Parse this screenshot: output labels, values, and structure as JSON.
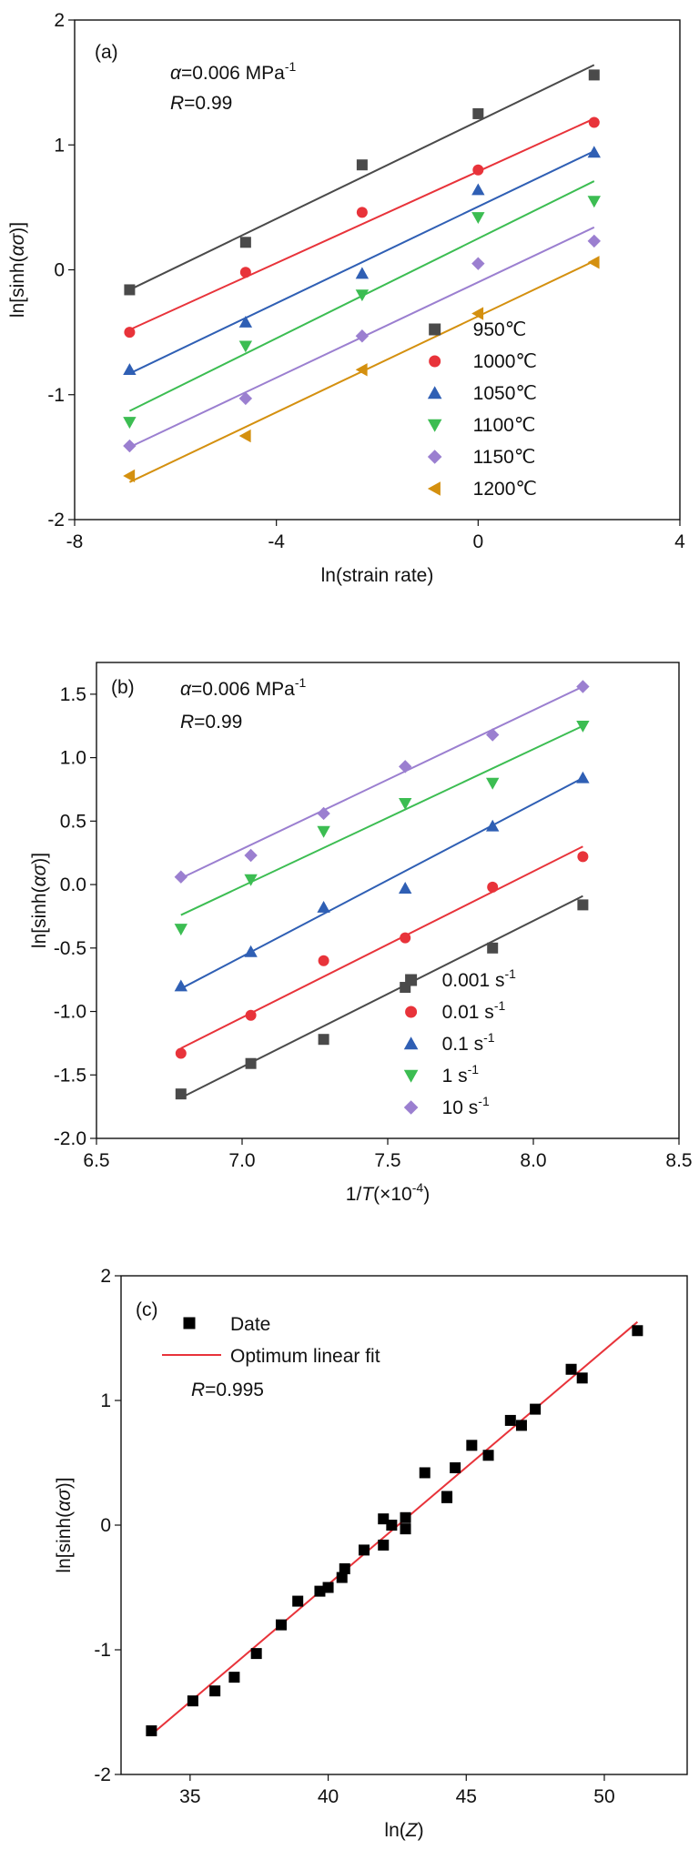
{
  "panels": [
    {
      "id": "a",
      "panel_label": "(a)",
      "annotations": {
        "alpha_sym": "α",
        "alpha_val": "=0.006 MPa",
        "alpha_sup": "-1",
        "r_sym": "R",
        "r_val": "=0.99"
      },
      "ylabel": {
        "prefix": "ln[sinh(",
        "alpha": "α",
        "sigma": "σ",
        "suffix": ")]"
      },
      "xlabel": {
        "parts": [
          {
            "t": "ln(strain rate)",
            "i": false
          }
        ]
      }
    },
    {
      "id": "b",
      "panel_label": "(b)",
      "annotations": {
        "alpha_sym": "α",
        "alpha_val": "=0.006 MPa",
        "alpha_sup": "-1",
        "r_sym": "R",
        "r_val": "=0.99"
      },
      "ylabel": {
        "prefix": "ln[sinh(",
        "alpha": "α",
        "sigma": "σ",
        "suffix": ")]"
      },
      "xlabel": {
        "parts": [
          {
            "t": "1/",
            "i": false
          },
          {
            "t": "T",
            "i": true
          },
          {
            "t": "(×10",
            "i": false
          }
        ],
        "sup": "-4",
        "tail": ")"
      }
    },
    {
      "id": "c",
      "panel_label": "(c)",
      "annotations": {
        "r_sym": "R",
        "r_val": "=0.995"
      },
      "ylabel": {
        "prefix": "ln[sinh(",
        "alpha": "α",
        "sigma": "σ",
        "suffix": ")]"
      },
      "xlabel": {
        "parts": [
          {
            "t": "ln(",
            "i": false
          },
          {
            "t": "Z",
            "i": true
          },
          {
            "t": ")",
            "i": false
          }
        ]
      }
    }
  ],
  "chart_data": [
    {
      "type": "scatter",
      "panel": "a",
      "xlabel": "ln(strain rate)",
      "ylabel": "ln[sinh(ασ)]",
      "xlim": [
        -8,
        4
      ],
      "ylim": [
        -2,
        2
      ],
      "xticks": [
        -8,
        -4,
        0,
        4
      ],
      "xtick_labels": [
        "-8",
        "-4",
        "0",
        "4"
      ],
      "yticks": [
        -2,
        -1,
        0,
        1,
        2
      ],
      "ytick_labels": [
        "-2",
        "-1",
        "0",
        "1",
        "2"
      ],
      "legend_position": "lower-right",
      "x": [
        -6.91,
        -4.61,
        -2.3,
        0,
        2.3
      ],
      "series": [
        {
          "name": "950",
          "unit": "℃",
          "color": "#4a4a4a",
          "marker": "square",
          "values": [
            -0.16,
            0.22,
            0.84,
            1.25,
            1.56
          ],
          "fit": [
            [
              -6.91,
              -0.16
            ],
            [
              2.3,
              1.64
            ]
          ]
        },
        {
          "name": "1000",
          "unit": "℃",
          "color": "#e8333a",
          "marker": "circle",
          "values": [
            -0.5,
            -0.02,
            0.46,
            0.8,
            1.18
          ],
          "fit": [
            [
              -6.91,
              -0.48
            ],
            [
              2.3,
              1.21
            ]
          ]
        },
        {
          "name": "1050",
          "unit": "℃",
          "color": "#2f5fb4",
          "marker": "triangle-up",
          "values": [
            -0.8,
            -0.42,
            -0.03,
            0.64,
            0.94
          ],
          "fit": [
            [
              -6.91,
              -0.83
            ],
            [
              2.3,
              0.95
            ]
          ]
        },
        {
          "name": "1100",
          "unit": "℃",
          "color": "#3cbd52",
          "marker": "triangle-down",
          "values": [
            -1.22,
            -0.61,
            -0.2,
            0.42,
            0.55
          ],
          "fit": [
            [
              -6.91,
              -1.13
            ],
            [
              2.3,
              0.71
            ]
          ]
        },
        {
          "name": "1150",
          "unit": "℃",
          "color": "#9b7fd0",
          "marker": "diamond",
          "values": [
            -1.41,
            -1.03,
            -0.53,
            0.05,
            0.23
          ],
          "fit": [
            [
              -6.91,
              -1.42
            ],
            [
              2.3,
              0.34
            ]
          ]
        },
        {
          "name": "1200",
          "unit": "℃",
          "color": "#d4900f",
          "marker": "triangle-left",
          "values": [
            -1.65,
            -1.33,
            -0.8,
            -0.35,
            0.06
          ],
          "fit": [
            [
              -6.91,
              -1.7
            ],
            [
              2.3,
              0.07
            ]
          ]
        }
      ]
    },
    {
      "type": "scatter",
      "panel": "b",
      "xlabel": "1/T(×10⁻⁴)",
      "ylabel": "ln[sinh(ασ)]",
      "xlim": [
        6.5,
        8.5
      ],
      "ylim": [
        -2.0,
        1.75
      ],
      "xticks": [
        6.5,
        7.0,
        7.5,
        8.0,
        8.5
      ],
      "xtick_labels": [
        "6.5",
        "7.0",
        "7.5",
        "8.0",
        "8.5"
      ],
      "yticks": [
        -2.0,
        -1.5,
        -1.0,
        -0.5,
        0.0,
        0.5,
        1.0,
        1.5
      ],
      "ytick_labels": [
        "-2.0",
        "-1.5",
        "-1.0",
        "-0.5",
        "0.0",
        "0.5",
        "1.0",
        "1.5"
      ],
      "legend_position": "lower-right",
      "x": [
        6.79,
        7.03,
        7.28,
        7.56,
        7.86,
        8.17
      ],
      "series": [
        {
          "name": "0.001 s",
          "sup": "-1",
          "color": "#4a4a4a",
          "marker": "square",
          "values": [
            -1.65,
            -1.41,
            -1.22,
            -0.81,
            -0.5,
            -0.16
          ],
          "fit": [
            [
              6.79,
              -1.68
            ],
            [
              8.17,
              -0.09
            ]
          ]
        },
        {
          "name": "0.01 s",
          "sup": "-1",
          "color": "#e8333a",
          "marker": "circle",
          "values": [
            -1.33,
            -1.03,
            -0.6,
            -0.42,
            -0.02,
            0.22
          ],
          "fit": [
            [
              6.79,
              -1.29
            ],
            [
              8.17,
              0.3
            ]
          ]
        },
        {
          "name": "0.1 s",
          "sup": "-1",
          "color": "#2f5fb4",
          "marker": "triangle-up",
          "values": [
            -0.8,
            -0.53,
            -0.18,
            -0.03,
            0.46,
            0.84
          ],
          "fit": [
            [
              6.79,
              -0.82
            ],
            [
              8.17,
              0.84
            ]
          ]
        },
        {
          "name": "1 s",
          "sup": "-1",
          "color": "#3cbd52",
          "marker": "triangle-down",
          "values": [
            -0.35,
            0.04,
            0.42,
            0.64,
            0.8,
            1.25
          ],
          "fit": [
            [
              6.79,
              -0.24
            ],
            [
              8.17,
              1.25
            ]
          ]
        },
        {
          "name": "10 s",
          "sup": "-1",
          "color": "#9b7fd0",
          "marker": "diamond",
          "values": [
            0.06,
            0.23,
            0.56,
            0.93,
            1.18,
            1.56
          ],
          "fit": [
            [
              6.79,
              0.05
            ],
            [
              8.17,
              1.56
            ]
          ]
        }
      ]
    },
    {
      "type": "scatter",
      "panel": "c",
      "xlabel": "ln(Z)",
      "ylabel": "ln[sinh(ασ)]",
      "xlim": [
        32.5,
        53
      ],
      "ylim": [
        -2,
        2
      ],
      "xticks": [
        35,
        40,
        45,
        50
      ],
      "xtick_labels": [
        "35",
        "40",
        "45",
        "50"
      ],
      "yticks": [
        -2,
        -1,
        0,
        1,
        2
      ],
      "ytick_labels": [
        "-2",
        "-1",
        "0",
        "1",
        "2"
      ],
      "legend_position": "top-left",
      "series": [
        {
          "name": "Date",
          "color": "#000000",
          "marker": "square",
          "points": [
            [
              33.6,
              -1.65
            ],
            [
              35.1,
              -1.41
            ],
            [
              35.9,
              -1.33
            ],
            [
              36.6,
              -1.22
            ],
            [
              37.4,
              -1.03
            ],
            [
              38.3,
              -0.8
            ],
            [
              38.9,
              -0.61
            ],
            [
              39.7,
              -0.53
            ],
            [
              40.0,
              -0.5
            ],
            [
              40.5,
              -0.42
            ],
            [
              40.6,
              -0.35
            ],
            [
              41.3,
              -0.2
            ],
            [
              42.0,
              -0.16
            ],
            [
              42.0,
              0.05
            ],
            [
              42.3,
              0.0
            ],
            [
              42.8,
              -0.03
            ],
            [
              42.8,
              0.06
            ],
            [
              43.5,
              0.42
            ],
            [
              44.3,
              0.22
            ],
            [
              44.3,
              0.23
            ],
            [
              44.6,
              0.46
            ],
            [
              45.2,
              0.64
            ],
            [
              45.8,
              0.56
            ],
            [
              46.6,
              0.84
            ],
            [
              47.0,
              0.8
            ],
            [
              47.5,
              0.93
            ],
            [
              48.8,
              1.25
            ],
            [
              49.2,
              1.18
            ],
            [
              51.2,
              1.56
            ]
          ]
        },
        {
          "name": "Optimum linear fit",
          "color": "#e8333a",
          "type": "line",
          "points": [
            [
              33.6,
              -1.68
            ],
            [
              51.2,
              1.63
            ]
          ]
        }
      ]
    }
  ]
}
